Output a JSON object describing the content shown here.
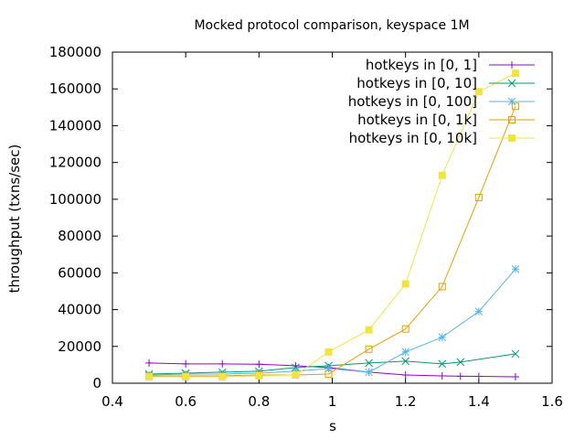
{
  "chart_data": {
    "type": "line",
    "title": "Mocked protocol comparison, keyspace 1M",
    "xlabel": "s",
    "ylabel": "throughput (txns/sec)",
    "xlim": [
      0.4,
      1.6
    ],
    "ylim": [
      0,
      180000
    ],
    "xticks": [
      0.4,
      0.6,
      0.8,
      1,
      1.2,
      1.4,
      1.6
    ],
    "yticks": [
      0,
      20000,
      40000,
      60000,
      80000,
      100000,
      120000,
      140000,
      160000,
      180000
    ],
    "grid": false,
    "legend_position": "top-right",
    "x": [
      0.5,
      0.6,
      0.7,
      0.8,
      0.9,
      0.99,
      1.1,
      1.2,
      1.3,
      1.35,
      1.4,
      1.5
    ],
    "series": [
      {
        "name": "hotkeys in [0, 1]",
        "marker": "plus",
        "color": "#9400d3",
        "values": [
          11000,
          10500,
          10500,
          10300,
          9500,
          8500,
          6000,
          4500,
          4000,
          3800,
          3700,
          3500
        ]
      },
      {
        "name": "hotkeys in [0, 10]",
        "marker": "cross",
        "color": "#009e73",
        "values": [
          5000,
          5500,
          6000,
          6500,
          8500,
          9500,
          11000,
          12000,
          10500,
          11500,
          null,
          16000
        ]
      },
      {
        "name": "hotkeys in [0, 100]",
        "marker": "star",
        "color": "#56b4e9",
        "values": [
          4500,
          5000,
          5000,
          5500,
          6500,
          8000,
          6000,
          17000,
          25000,
          null,
          39000,
          62000
        ]
      },
      {
        "name": "hotkeys in [0, 1k]",
        "marker": "open-square",
        "color": "#e69f00",
        "values": [
          4000,
          4000,
          4000,
          4500,
          4500,
          5000,
          18500,
          29500,
          52500,
          null,
          101000,
          150500
        ]
      },
      {
        "name": "hotkeys in [0, 10k]",
        "marker": "filled-square",
        "color": "#f0e442",
        "values": [
          3500,
          3500,
          3500,
          4000,
          4500,
          17000,
          29000,
          54000,
          113000,
          null,
          158500,
          168500
        ]
      }
    ]
  }
}
